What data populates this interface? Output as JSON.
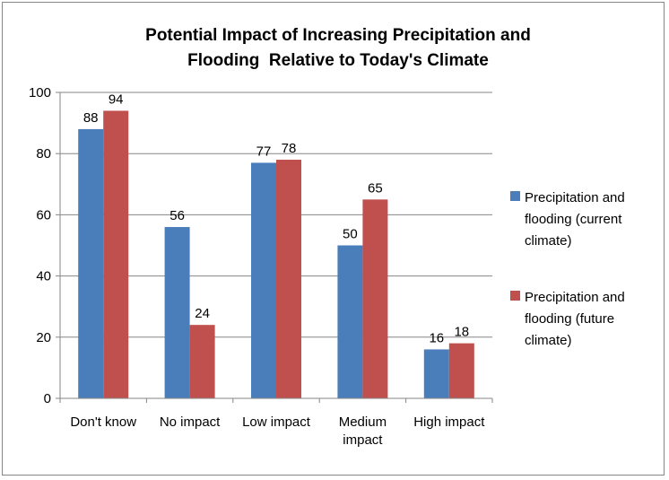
{
  "chart_data": {
    "type": "bar",
    "title_lines": [
      "Potential Impact of Increasing Precipitation and",
      "Flooding  Relative to Today's Climate"
    ],
    "xlabel": "",
    "ylabel": "",
    "categories": [
      "Don't know",
      "No impact",
      "Low impact",
      "Medium impact",
      "High impact"
    ],
    "category_label_lines": [
      [
        "Don't know"
      ],
      [
        "No impact"
      ],
      [
        "Low impact"
      ],
      [
        "Medium",
        "impact"
      ],
      [
        "High impact"
      ]
    ],
    "series": [
      {
        "name": "Precipitation and flooding (current climate)",
        "legend_lines": [
          "Precipitation and",
          "flooding (current",
          "climate)"
        ],
        "color": "#4a7ebb",
        "values": [
          88,
          56,
          77,
          50,
          16
        ]
      },
      {
        "name": "Precipitation and flooding (future climate)",
        "legend_lines": [
          "Precipitation and",
          "flooding (future",
          "climate)"
        ],
        "color": "#c0504d",
        "values": [
          94,
          24,
          78,
          65,
          18
        ]
      }
    ],
    "ylim": [
      0,
      100
    ],
    "yticks": [
      0,
      20,
      40,
      60,
      80,
      100
    ],
    "grid": true,
    "legend_position": "right",
    "data_labels": true
  }
}
